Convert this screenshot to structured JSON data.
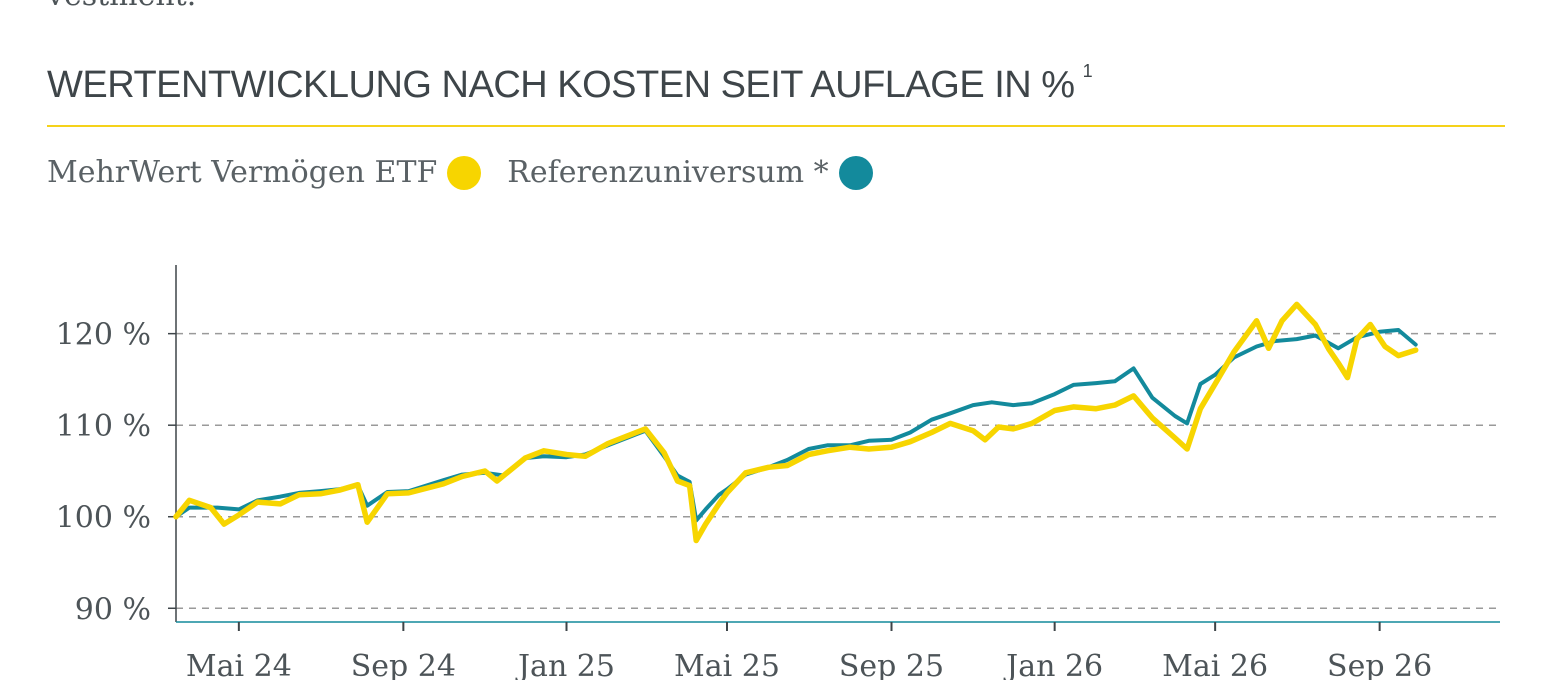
{
  "page": {
    "top_fragment": "vestment.",
    "heading": "WERTENTWICKLUNG NACH KOSTEN SEIT AUFLAGE IN %",
    "heading_note": "1"
  },
  "colors": {
    "accent": "#f5d21a",
    "etf": "#f7d500",
    "reference": "#138a9c",
    "text": "#4d5458"
  },
  "chart_data": {
    "type": "line",
    "title": "WERTENTWICKLUNG NACH KOSTEN SEIT AUFLAGE IN %",
    "legend_position": "top-left",
    "grid": "horizontal dashed",
    "x_ticks": [
      {
        "label": "Mai 24",
        "date": "2024-05-01"
      },
      {
        "label": "Sep 24",
        "date": "2024-09-01"
      },
      {
        "label": "Jan 25",
        "date": "2025-01-01"
      },
      {
        "label": "Mai 25",
        "date": "2025-05-01"
      },
      {
        "label": "Sep 25",
        "date": "2025-09-01"
      },
      {
        "label": "Jan 26",
        "date": "2026-01-01"
      },
      {
        "label": "Mai 26",
        "date": "2026-05-01"
      },
      {
        "label": "Sep 26",
        "date": "2026-09-01"
      }
    ],
    "xlim": [
      "2024-03-15",
      "2026-11-30"
    ],
    "y_ticks": [
      {
        "label": "90 %",
        "value": 90
      },
      {
        "label": "100 %",
        "value": 100
      },
      {
        "label": "110 %",
        "value": 110
      },
      {
        "label": "120 %",
        "value": 120
      }
    ],
    "ylim": [
      88.5,
      127.5
    ],
    "series": [
      {
        "name": "Referenzuniversum *",
        "color": "#138a9c",
        "points": [
          [
            "2024-03-15",
            100
          ],
          [
            "2024-03-25",
            101
          ],
          [
            "2024-04-15",
            101
          ],
          [
            "2024-05-01",
            100.8
          ],
          [
            "2024-05-15",
            101.8
          ],
          [
            "2024-06-01",
            102.2
          ],
          [
            "2024-06-15",
            102.6
          ],
          [
            "2024-07-01",
            102.8
          ],
          [
            "2024-07-15",
            103
          ],
          [
            "2024-07-29",
            103.4
          ],
          [
            "2024-08-05",
            101.2
          ],
          [
            "2024-08-20",
            102.7
          ],
          [
            "2024-09-05",
            102.8
          ],
          [
            "2024-10-01",
            104
          ],
          [
            "2024-10-15",
            104.6
          ],
          [
            "2024-11-01",
            104.8
          ],
          [
            "2024-11-15",
            104.5
          ],
          [
            "2024-12-01",
            106.4
          ],
          [
            "2024-12-15",
            106.6
          ],
          [
            "2025-01-01",
            106.5
          ],
          [
            "2025-01-15",
            106.8
          ],
          [
            "2025-02-01",
            107.8
          ],
          [
            "2025-02-15",
            108.6
          ],
          [
            "2025-03-01",
            109.4
          ],
          [
            "2025-03-15",
            106.6
          ],
          [
            "2025-03-25",
            104.5
          ],
          [
            "2025-04-03",
            103.8
          ],
          [
            "2025-04-08",
            99.6
          ],
          [
            "2025-04-15",
            100.8
          ],
          [
            "2025-04-25",
            102.4
          ],
          [
            "2025-05-01",
            103
          ],
          [
            "2025-05-15",
            104.6
          ],
          [
            "2025-06-01",
            105.4
          ],
          [
            "2025-06-15",
            106.2
          ],
          [
            "2025-07-01",
            107.4
          ],
          [
            "2025-07-15",
            107.8
          ],
          [
            "2025-08-01",
            107.8
          ],
          [
            "2025-08-15",
            108.3
          ],
          [
            "2025-09-01",
            108.4
          ],
          [
            "2025-09-15",
            109.2
          ],
          [
            "2025-10-01",
            110.6
          ],
          [
            "2025-10-15",
            111.3
          ],
          [
            "2025-11-01",
            112.2
          ],
          [
            "2025-11-15",
            112.5
          ],
          [
            "2025-12-01",
            112.2
          ],
          [
            "2025-12-15",
            112.4
          ],
          [
            "2026-01-01",
            113.4
          ],
          [
            "2026-01-15",
            114.4
          ],
          [
            "2026-02-01",
            114.6
          ],
          [
            "2026-02-15",
            114.8
          ],
          [
            "2026-03-01",
            116.2
          ],
          [
            "2026-03-15",
            113
          ],
          [
            "2026-04-01",
            111
          ],
          [
            "2026-04-10",
            110.2
          ],
          [
            "2026-04-20",
            114.5
          ],
          [
            "2026-05-01",
            115.5
          ],
          [
            "2026-05-15",
            117.4
          ],
          [
            "2026-06-01",
            118.6
          ],
          [
            "2026-06-15",
            119.2
          ],
          [
            "2026-07-01",
            119.4
          ],
          [
            "2026-07-15",
            119.8
          ],
          [
            "2026-08-01",
            118.4
          ],
          [
            "2026-08-15",
            119.6
          ],
          [
            "2026-09-01",
            120.2
          ],
          [
            "2026-09-15",
            120.4
          ],
          [
            "2026-09-28",
            118.8
          ]
        ]
      },
      {
        "name": "MehrWert Vermögen ETF",
        "color": "#f7d500",
        "points": [
          [
            "2024-03-15",
            100
          ],
          [
            "2024-03-25",
            101.8
          ],
          [
            "2024-04-10",
            101
          ],
          [
            "2024-04-20",
            99.2
          ],
          [
            "2024-05-01",
            100.2
          ],
          [
            "2024-05-15",
            101.6
          ],
          [
            "2024-06-01",
            101.4
          ],
          [
            "2024-06-15",
            102.4
          ],
          [
            "2024-07-01",
            102.5
          ],
          [
            "2024-07-15",
            102.9
          ],
          [
            "2024-07-29",
            103.5
          ],
          [
            "2024-08-05",
            99.4
          ],
          [
            "2024-08-20",
            102.5
          ],
          [
            "2024-09-05",
            102.6
          ],
          [
            "2024-10-01",
            103.6
          ],
          [
            "2024-10-15",
            104.4
          ],
          [
            "2024-11-01",
            105
          ],
          [
            "2024-11-10",
            103.9
          ],
          [
            "2024-12-01",
            106.4
          ],
          [
            "2024-12-15",
            107.2
          ],
          [
            "2025-01-01",
            106.8
          ],
          [
            "2025-01-15",
            106.6
          ],
          [
            "2025-02-01",
            108
          ],
          [
            "2025-02-15",
            108.8
          ],
          [
            "2025-03-01",
            109.6
          ],
          [
            "2025-03-15",
            107
          ],
          [
            "2025-03-25",
            103.9
          ],
          [
            "2025-04-03",
            103.4
          ],
          [
            "2025-04-08",
            97.4
          ],
          [
            "2025-04-15",
            99.2
          ],
          [
            "2025-04-25",
            101.4
          ],
          [
            "2025-05-01",
            102.6
          ],
          [
            "2025-05-15",
            104.8
          ],
          [
            "2025-06-01",
            105.4
          ],
          [
            "2025-06-15",
            105.6
          ],
          [
            "2025-07-01",
            106.8
          ],
          [
            "2025-07-15",
            107.2
          ],
          [
            "2025-08-01",
            107.6
          ],
          [
            "2025-08-15",
            107.4
          ],
          [
            "2025-09-01",
            107.6
          ],
          [
            "2025-09-15",
            108.2
          ],
          [
            "2025-10-01",
            109.2
          ],
          [
            "2025-10-15",
            110.2
          ],
          [
            "2025-11-01",
            109.4
          ],
          [
            "2025-11-10",
            108.4
          ],
          [
            "2025-11-20",
            109.8
          ],
          [
            "2025-12-01",
            109.6
          ],
          [
            "2025-12-15",
            110.2
          ],
          [
            "2026-01-01",
            111.6
          ],
          [
            "2026-01-15",
            112
          ],
          [
            "2026-02-01",
            111.8
          ],
          [
            "2026-02-15",
            112.2
          ],
          [
            "2026-03-01",
            113.2
          ],
          [
            "2026-03-15",
            110.8
          ],
          [
            "2026-04-01",
            108.6
          ],
          [
            "2026-04-10",
            107.4
          ],
          [
            "2026-04-20",
            111.8
          ],
          [
            "2026-05-01",
            114.5
          ],
          [
            "2026-05-15",
            118
          ],
          [
            "2026-06-01",
            121.4
          ],
          [
            "2026-06-10",
            118.4
          ],
          [
            "2026-06-20",
            121.4
          ],
          [
            "2026-07-01",
            123.2
          ],
          [
            "2026-07-15",
            121
          ],
          [
            "2026-07-25",
            118.3
          ],
          [
            "2026-08-01",
            116.8
          ],
          [
            "2026-08-08",
            115.2
          ],
          [
            "2026-08-15",
            119.4
          ],
          [
            "2026-08-25",
            121
          ],
          [
            "2026-09-05",
            118.6
          ],
          [
            "2026-09-15",
            117.6
          ],
          [
            "2026-09-28",
            118.2
          ]
        ]
      }
    ]
  }
}
